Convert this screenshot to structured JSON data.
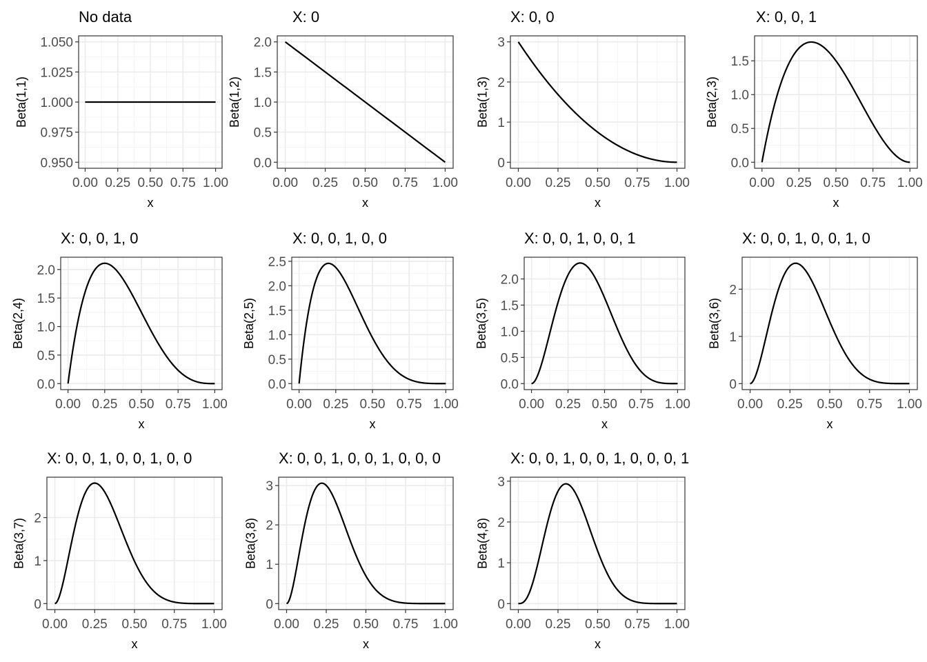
{
  "chart_data": [
    {
      "type": "line",
      "title": "No data",
      "xlabel": "x",
      "ylabel": "Beta(1,1)",
      "alpha": 1,
      "beta": 1,
      "xlim": [
        0,
        1
      ],
      "ylim": [
        0.95,
        1.05
      ],
      "yticks": [
        0.95,
        0.975,
        1.0,
        1.025,
        1.05
      ],
      "ytick_labels": [
        "0.950",
        "0.975",
        "1.000",
        "1.025",
        "1.050"
      ]
    },
    {
      "type": "line",
      "title": "X: 0",
      "xlabel": "x",
      "ylabel": "Beta(1,2)",
      "alpha": 1,
      "beta": 2,
      "xlim": [
        0,
        1
      ],
      "ylim": [
        0,
        2
      ],
      "yticks": [
        0,
        0.5,
        1.0,
        1.5,
        2.0
      ],
      "ytick_labels": [
        "0.0",
        "0.5",
        "1.0",
        "1.5",
        "2.0"
      ]
    },
    {
      "type": "line",
      "title": "X: 0, 0",
      "xlabel": "x",
      "ylabel": "Beta(1,3)",
      "alpha": 1,
      "beta": 3,
      "xlim": [
        0,
        1
      ],
      "ylim": [
        0,
        3
      ],
      "yticks": [
        0,
        1,
        2,
        3
      ],
      "ytick_labels": [
        "0",
        "1",
        "2",
        "3"
      ]
    },
    {
      "type": "line",
      "title": "X: 0, 0, 1",
      "xlabel": "x",
      "ylabel": "Beta(2,3)",
      "alpha": 2,
      "beta": 3,
      "xlim": [
        0,
        1
      ],
      "ylim": [
        0,
        1.78
      ],
      "yticks": [
        0,
        0.5,
        1.0,
        1.5
      ],
      "ytick_labels": [
        "0.0",
        "0.5",
        "1.0",
        "1.5"
      ]
    },
    {
      "type": "line",
      "title": "X: 0, 0, 1, 0",
      "xlabel": "x",
      "ylabel": "Beta(2,4)",
      "alpha": 2,
      "beta": 4,
      "xlim": [
        0,
        1
      ],
      "ylim": [
        0,
        2.11
      ],
      "yticks": [
        0,
        0.5,
        1.0,
        1.5,
        2.0
      ],
      "ytick_labels": [
        "0.0",
        "0.5",
        "1.0",
        "1.5",
        "2.0"
      ]
    },
    {
      "type": "line",
      "title": "X: 0, 0, 1, 0, 0",
      "xlabel": "x",
      "ylabel": "Beta(2,5)",
      "alpha": 2,
      "beta": 5,
      "xlim": [
        0,
        1
      ],
      "ylim": [
        0,
        2.46
      ],
      "yticks": [
        0,
        0.5,
        1.0,
        1.5,
        2.0,
        2.5
      ],
      "ytick_labels": [
        "0.0",
        "0.5",
        "1.0",
        "1.5",
        "2.0",
        "2.5"
      ]
    },
    {
      "type": "line",
      "title": "X: 0, 0, 1, 0, 0, 1",
      "xlabel": "x",
      "ylabel": "Beta(3,5)",
      "alpha": 3,
      "beta": 5,
      "xlim": [
        0,
        1
      ],
      "ylim": [
        0,
        2.3
      ],
      "yticks": [
        0,
        0.5,
        1.0,
        1.5,
        2.0
      ],
      "ytick_labels": [
        "0.0",
        "0.5",
        "1.0",
        "1.5",
        "2.0"
      ]
    },
    {
      "type": "line",
      "title": "X: 0, 0, 1, 0, 0, 1, 0",
      "xlabel": "x",
      "ylabel": "Beta(3,6)",
      "alpha": 3,
      "beta": 6,
      "xlim": [
        0,
        1
      ],
      "ylim": [
        0,
        2.55
      ],
      "yticks": [
        0,
        1,
        2
      ],
      "ytick_labels": [
        "0",
        "1",
        "2"
      ]
    },
    {
      "type": "line",
      "title": "X: 0, 0, 1, 0, 0, 1, 0, 0",
      "xlabel": "x",
      "ylabel": "Beta(3,7)",
      "alpha": 3,
      "beta": 7,
      "xlim": [
        0,
        1
      ],
      "ylim": [
        0,
        2.8
      ],
      "yticks": [
        0,
        1,
        2
      ],
      "ytick_labels": [
        "0",
        "1",
        "2"
      ]
    },
    {
      "type": "line",
      "title": "X: 0, 0, 1, 0, 0, 1, 0, 0, 0",
      "xlabel": "x",
      "ylabel": "Beta(3,8)",
      "alpha": 3,
      "beta": 8,
      "xlim": [
        0,
        1
      ],
      "ylim": [
        0,
        3.06
      ],
      "yticks": [
        0,
        1,
        2,
        3
      ],
      "ytick_labels": [
        "0",
        "1",
        "2",
        "3"
      ]
    },
    {
      "type": "line",
      "title": "X: 0, 0, 1, 0, 0, 1, 0, 0, 0, 1",
      "xlabel": "x",
      "ylabel": "Beta(4,8)",
      "alpha": 4,
      "beta": 8,
      "xlim": [
        0,
        1
      ],
      "ylim": [
        0,
        2.95
      ],
      "yticks": [
        0,
        1,
        2,
        3
      ],
      "ytick_labels": [
        "0",
        "1",
        "2",
        "3"
      ]
    }
  ],
  "xticks": [
    0,
    0.25,
    0.5,
    0.75,
    1.0
  ],
  "xtick_labels": [
    "0.00",
    "0.25",
    "0.50",
    "0.75",
    "1.00"
  ],
  "colors": {
    "curve": "#000000",
    "grid_major": "#ebebeb",
    "grid_minor": "#f2f2f2",
    "panel_border": "#333333",
    "tick_text": "#4d4d4d"
  }
}
